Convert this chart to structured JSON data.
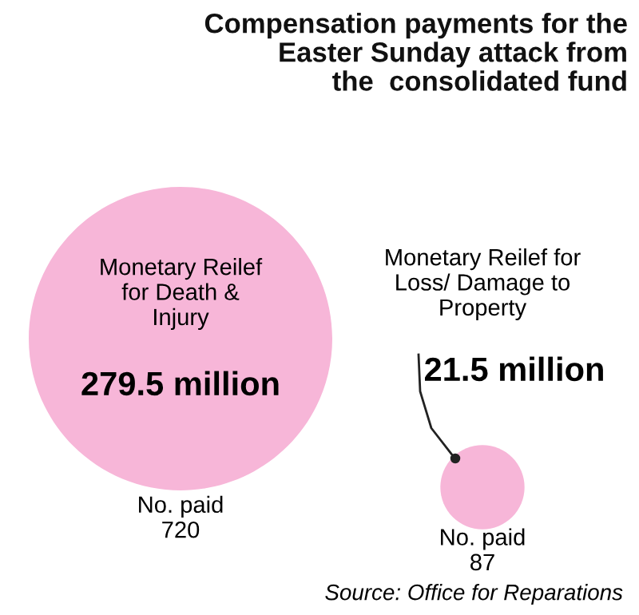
{
  "chart_data": {
    "type": "other",
    "title": "Compensation payments for the\nEaster Sunday attack from\nthe  consolidated fund",
    "categories": [
      "Monetary Reilef\nfor Death &\nInjury",
      "Monetary Reilef for\nLoss/ Damage to\nProperty"
    ],
    "values": [
      279.5,
      21.5
    ],
    "value_labels": [
      "279.5 million",
      "21.5 million"
    ],
    "colors": [
      "#f7b6d8",
      "#f7b6d8"
    ],
    "annotations": [
      "No. paid\n720",
      "No. paid\n87",
      "Source: Office for Reparations"
    ]
  }
}
